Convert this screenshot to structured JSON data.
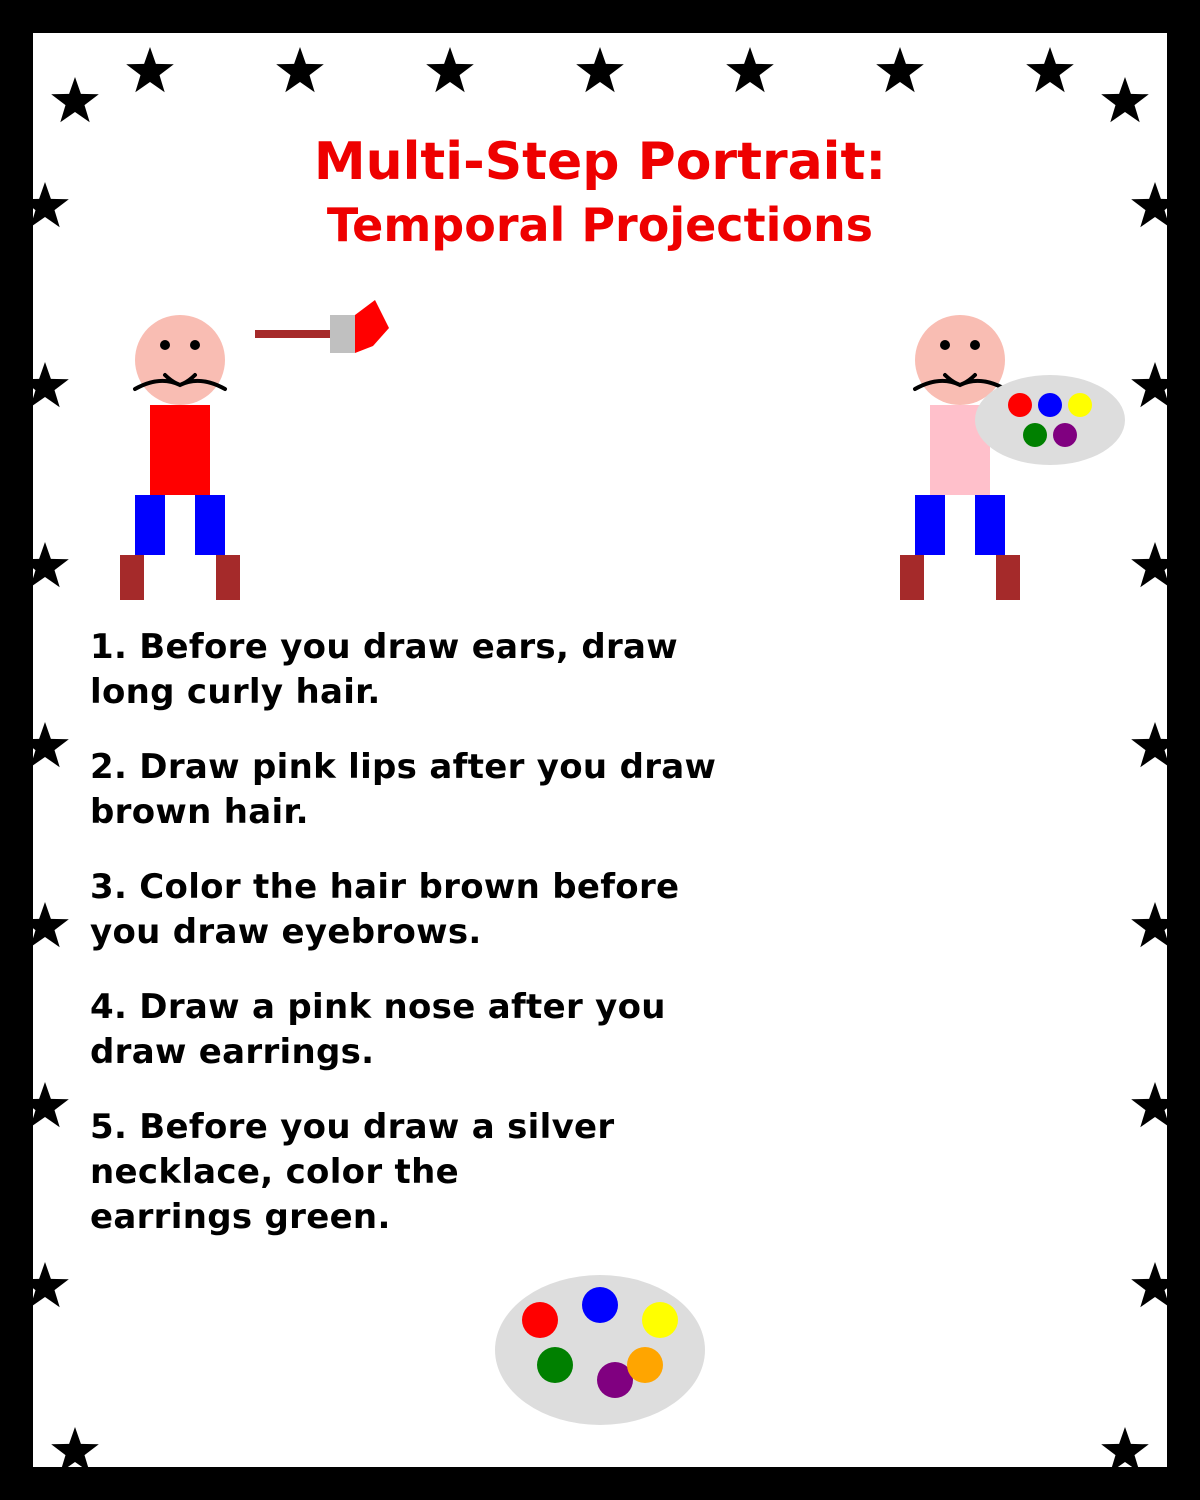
{
  "title": {
    "line1": "Multi-Step Portrait:",
    "line2": "Temporal Projections"
  },
  "instructions": [
    {
      "lines": [
        "1. Before you draw ears, draw",
        "long curly hair."
      ]
    },
    {
      "lines": [
        "2. Draw pink lips after you draw",
        "brown hair."
      ]
    },
    {
      "lines": [
        "3. Color the hair brown before",
        "you draw eyebrows."
      ]
    },
    {
      "lines": [
        "4. Draw a pink nose after you",
        "draw earrings."
      ]
    },
    {
      "lines": [
        "5. Before you draw a silver",
        "necklace, color the",
        "earrings green."
      ]
    }
  ],
  "colors": {
    "frame": "#000000",
    "background": "#ffffff",
    "title": "#ee0000",
    "skin": "#f9bdb3",
    "shirt_left": "#ff0000",
    "shirt_right": "#ffc0cb",
    "pants": "#0000ff",
    "boots": "#a52a2a",
    "brush_handle": "#a52a2a",
    "brush_ferrule": "#c0c0c0",
    "brush_tip": "#ff0000",
    "palette": "#dddddd",
    "paint_spots": [
      "#ff0000",
      "#0000ff",
      "#ffff00",
      "#008000",
      "#800080",
      "#ffa500"
    ]
  },
  "decorations": {
    "border_icon": "star-icon",
    "left_figure": "painter-with-brush",
    "right_figure": "painter-with-palette",
    "bottom_icon": "paint-palette-icon"
  }
}
